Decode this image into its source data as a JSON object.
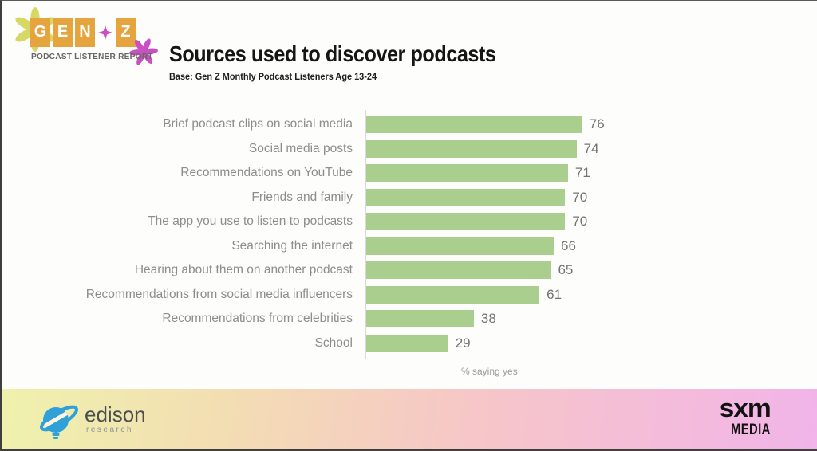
{
  "brand": {
    "genz_letters": [
      "G",
      "E",
      "N",
      "Z"
    ],
    "genz_subtitle": "PODCAST LISTENER REPORT",
    "colors": {
      "box_orange": "#e6a43f",
      "flower_green": "#d5d963",
      "flower_magenta": "#c94fc3",
      "edison_blue": "#2fa0d8"
    }
  },
  "chart_data": {
    "type": "bar",
    "orientation": "horizontal",
    "title": "Sources used to discover podcasts",
    "subtitle": "Base: Gen Z Monthly Podcast Listeners Age 13-24",
    "categories": [
      "Brief podcast clips on social media",
      "Social media posts",
      "Recommendations on YouTube",
      "Friends and family",
      "The app you use to listen to podcasts",
      "Searching the internet",
      "Hearing about them on another podcast",
      "Recommendations from social media influencers",
      "Recommendations from celebrities",
      "School"
    ],
    "values": [
      76,
      74,
      71,
      70,
      70,
      66,
      65,
      61,
      38,
      29
    ],
    "xlabel": "% saying yes",
    "xlim": [
      0,
      85
    ],
    "bar_color": "#a9ce8e",
    "category_label_color": "#8d8d8d",
    "value_label_color": "#737373",
    "grid": false,
    "legend": false
  },
  "footer": {
    "edison_name": "edison",
    "edison_sub": "research",
    "sxm_line1": "sxm",
    "sxm_line2": "MEDIA"
  }
}
